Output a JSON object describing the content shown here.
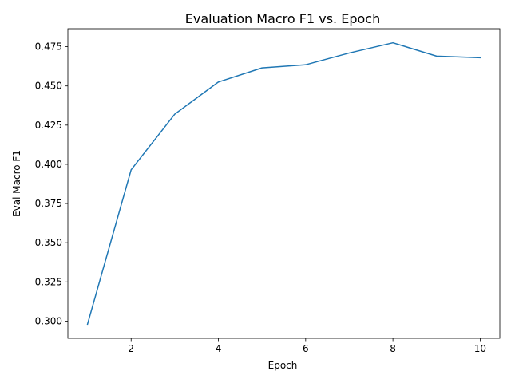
{
  "chart_data": {
    "type": "line",
    "title": "Evaluation Macro F1 vs. Epoch",
    "xlabel": "Epoch",
    "ylabel": "Eval Macro F1",
    "x": [
      1,
      2,
      3,
      4,
      5,
      6,
      7,
      8,
      9,
      10
    ],
    "series": [
      {
        "values": [
          0.298,
          0.3965,
          0.432,
          0.4525,
          0.4615,
          0.4635,
          0.471,
          0.4775,
          0.469,
          0.468
        ]
      }
    ],
    "xlim": [
      0.55,
      10.45
    ],
    "ylim": [
      0.289,
      0.4865
    ],
    "xticks": [
      2,
      4,
      6,
      8,
      10
    ],
    "xtick_labels": [
      "2",
      "4",
      "6",
      "8",
      "10"
    ],
    "yticks": [
      0.3,
      0.325,
      0.35,
      0.375,
      0.4,
      0.425,
      0.45,
      0.475
    ],
    "ytick_labels": [
      "0.300",
      "0.325",
      "0.350",
      "0.375",
      "0.400",
      "0.425",
      "0.450",
      "0.475"
    ],
    "grid": false,
    "legend": "none",
    "colors": {
      "line": "#1f77b4",
      "axes": "#000000",
      "background": "#ffffff"
    }
  }
}
